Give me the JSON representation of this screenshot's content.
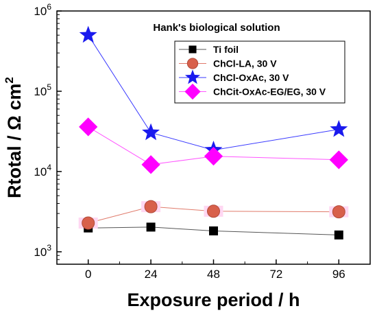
{
  "chart_data": {
    "type": "scatter",
    "annotation": "Hank's biological solution",
    "xlabel": "Exposure period / h",
    "ylabel_main": "Rtotal / Ω cm",
    "ylabel_sup": "2",
    "x_ticks": [
      "0",
      "24",
      "48",
      "72",
      "96"
    ],
    "y_ticks": [
      {
        "base": "10",
        "exp": "3"
      },
      {
        "base": "10",
        "exp": "4"
      },
      {
        "base": "10",
        "exp": "5"
      },
      {
        "base": "10",
        "exp": "6"
      }
    ],
    "xlim": [
      -12,
      108
    ],
    "ylim": [
      700,
      1000000
    ],
    "yscale": "log",
    "legend_position": "top-right",
    "series": [
      {
        "name": "Ti foil",
        "marker": "square",
        "color": "#000000",
        "line_color": "#555555",
        "x": [
          0,
          24,
          48,
          96
        ],
        "y": [
          1980,
          2030,
          1820,
          1620
        ]
      },
      {
        "name": "ChCl-LA, 30 V",
        "marker": "circle",
        "color": "#d8604b",
        "line_color": "#e07a6a",
        "x": [
          0,
          24,
          48,
          96
        ],
        "y": [
          2280,
          3650,
          3200,
          3150
        ]
      },
      {
        "name": "ChCl-OxAc, 30 V",
        "marker": "star",
        "color": "#1a1aee",
        "line_color": "#3a3aff",
        "x": [
          0,
          24,
          48,
          96
        ],
        "y": [
          500000,
          30500,
          18500,
          33500
        ]
      },
      {
        "name": "ChCit-OxAc-EG/EG, 30 V",
        "marker": "diamond",
        "color": "#ff00ff",
        "line_color": "#ff55ff",
        "x": [
          0,
          24,
          48,
          96
        ],
        "y": [
          36000,
          12200,
          15500,
          14000
        ]
      }
    ]
  }
}
